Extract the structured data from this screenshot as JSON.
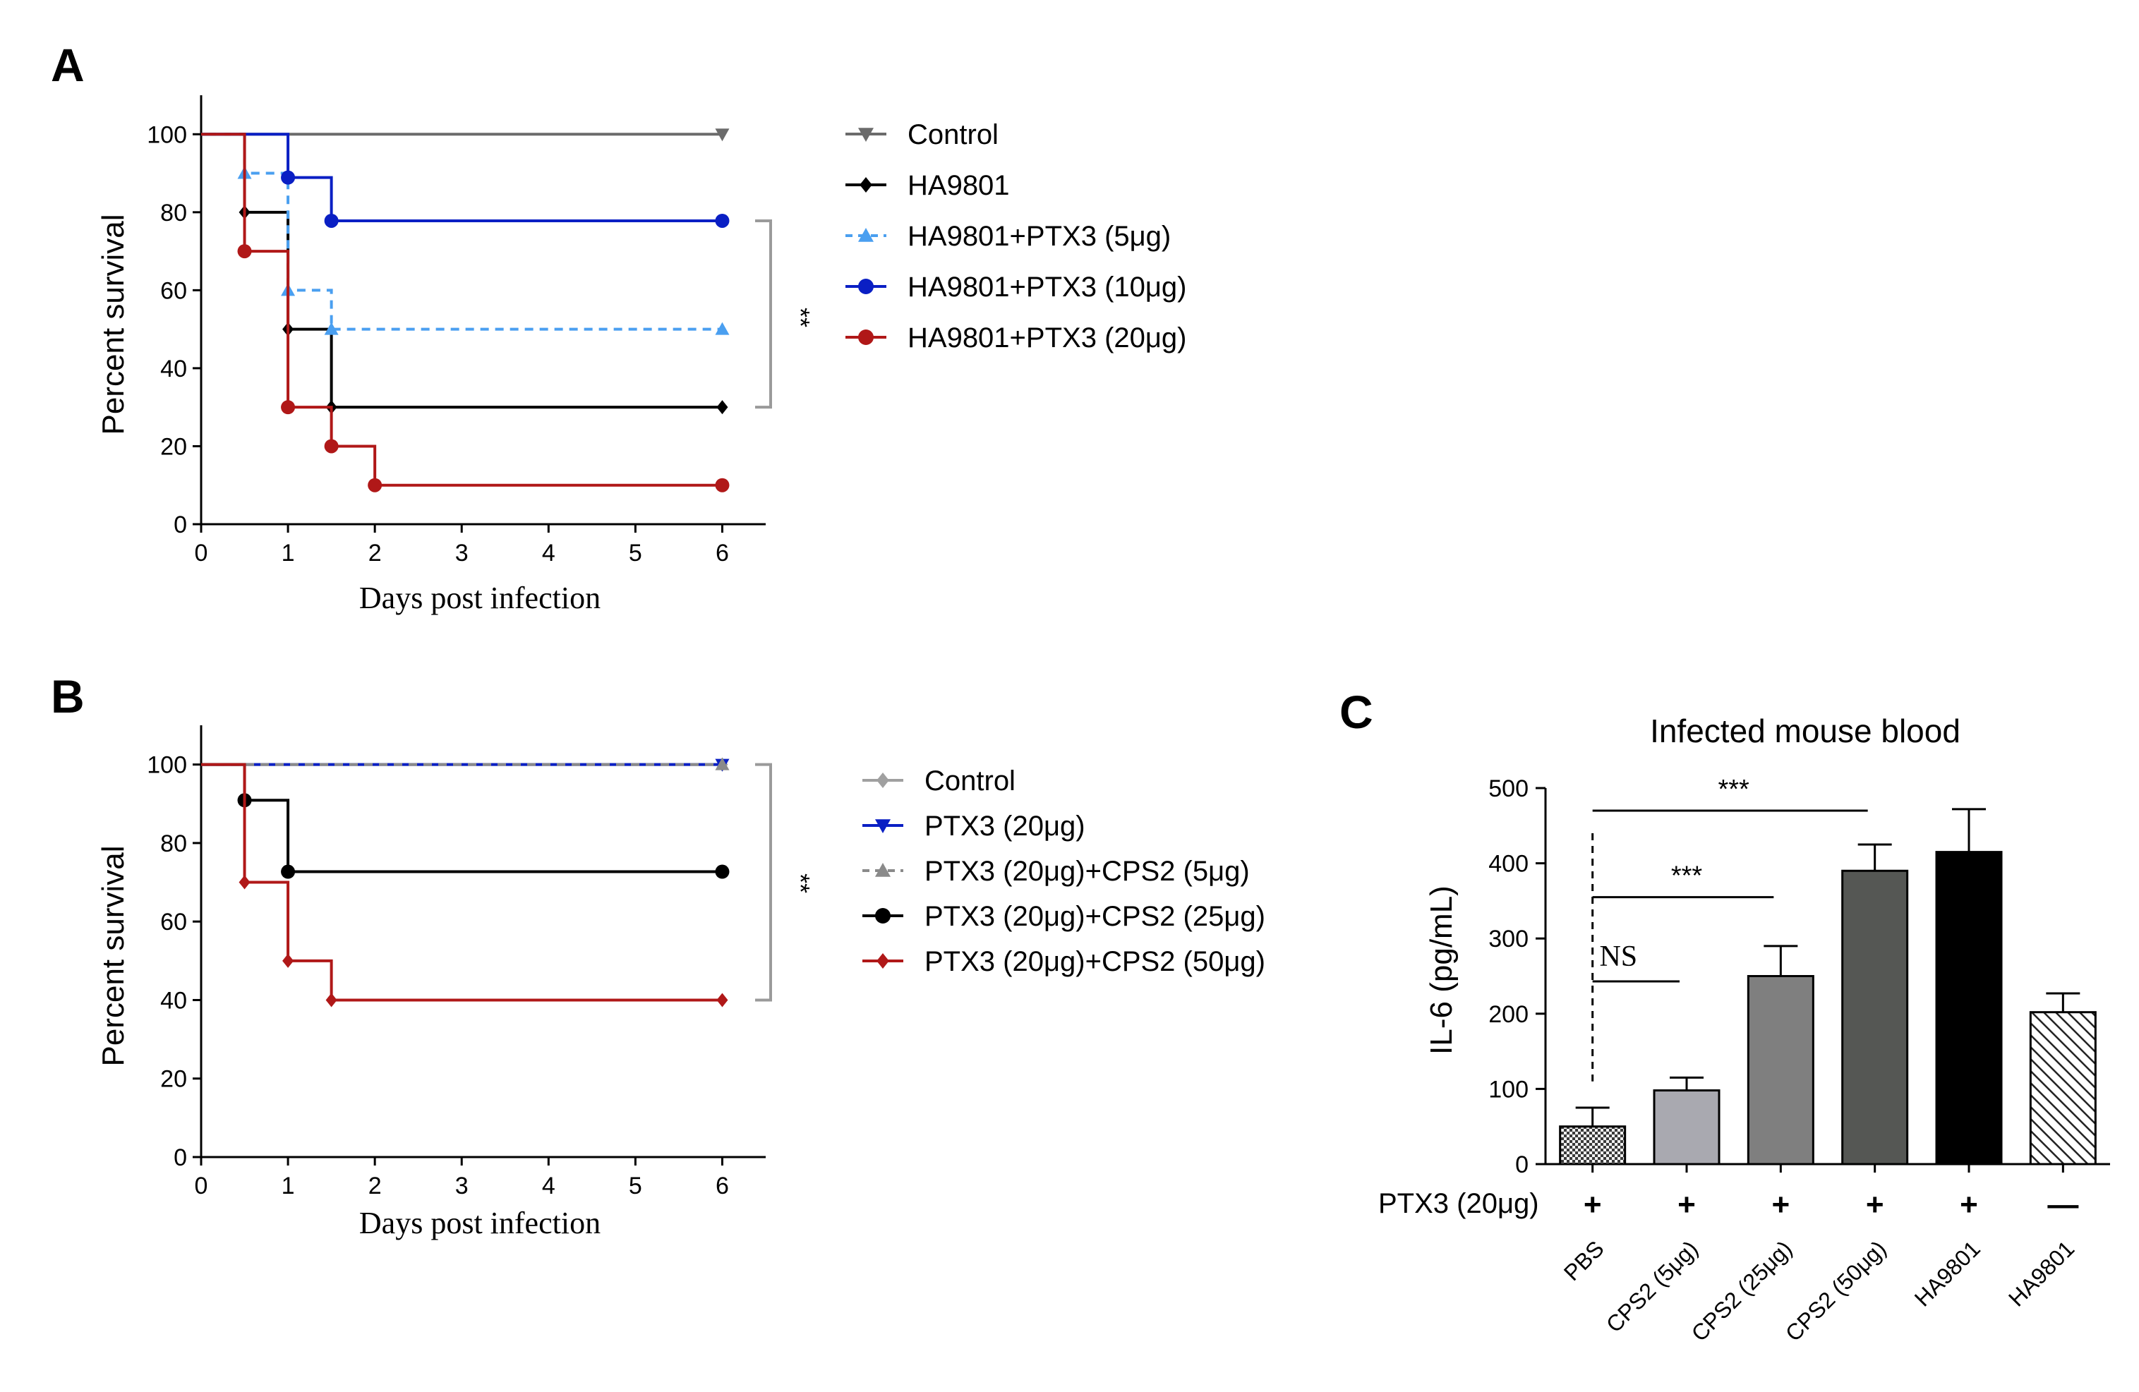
{
  "panels": {
    "A": {
      "letter": "A"
    },
    "B": {
      "letter": "B"
    },
    "C": {
      "letter": "C"
    }
  },
  "chart_data": [
    {
      "panel": "A",
      "type": "line",
      "subtype": "kaplan-meier step survival curve",
      "title": "",
      "xlabel": "Days post infection",
      "ylabel": "Percent survival",
      "xlim": [
        0,
        6.5
      ],
      "ylim": [
        0,
        110
      ],
      "xticks": [
        0,
        1,
        2,
        3,
        4,
        5,
        6
      ],
      "yticks": [
        0,
        20,
        40,
        60,
        80,
        100
      ],
      "legend_position": "right",
      "grid": false,
      "series": [
        {
          "name": "Control",
          "color": "#6b6b6b",
          "marker": "triangle-down",
          "dash": "solid",
          "points": [
            [
              0,
              100
            ],
            [
              6,
              100
            ]
          ],
          "marked": [
            [
              6,
              100
            ]
          ]
        },
        {
          "name": "HA9801",
          "color": "#000000",
          "marker": "diamond",
          "dash": "solid",
          "points": [
            [
              0,
              100
            ],
            [
              0.5,
              80
            ],
            [
              1,
              50
            ],
            [
              1.5,
              30
            ],
            [
              6,
              30
            ]
          ],
          "marked": [
            [
              0.5,
              80
            ],
            [
              1,
              50
            ],
            [
              1.5,
              30
            ],
            [
              6,
              30
            ]
          ]
        },
        {
          "name": "HA9801+PTX3 (5μg)",
          "color": "#4a9ff0",
          "marker": "triangle-up",
          "dash": "dashed",
          "points": [
            [
              0,
              100
            ],
            [
              0.5,
              90
            ],
            [
              1,
              60
            ],
            [
              1.5,
              50
            ],
            [
              6,
              50
            ]
          ],
          "marked": [
            [
              0.5,
              90
            ],
            [
              1,
              60
            ],
            [
              1.5,
              50
            ],
            [
              6,
              50
            ]
          ]
        },
        {
          "name": "HA9801+PTX3 (10μg)",
          "color": "#0a1fc4",
          "marker": "circle",
          "dash": "solid",
          "points": [
            [
              0,
              100
            ],
            [
              1,
              88.9
            ],
            [
              1.5,
              77.8
            ],
            [
              6,
              77.8
            ]
          ],
          "marked": [
            [
              1,
              88.9
            ],
            [
              1.5,
              77.8
            ],
            [
              6,
              77.8
            ]
          ]
        },
        {
          "name": "HA9801+PTX3 (20μg)",
          "color": "#b01818",
          "marker": "circle",
          "dash": "solid",
          "points": [
            [
              0,
              100
            ],
            [
              0.5,
              70
            ],
            [
              1,
              30
            ],
            [
              1.5,
              20
            ],
            [
              2,
              10
            ],
            [
              6,
              10
            ]
          ],
          "marked": [
            [
              0.5,
              70
            ],
            [
              1,
              30
            ],
            [
              1.5,
              20
            ],
            [
              2,
              10
            ],
            [
              6,
              10
            ]
          ]
        }
      ],
      "annotations": [
        {
          "text": "**",
          "bracket_from": 77.8,
          "bracket_to": 30
        }
      ]
    },
    {
      "panel": "B",
      "type": "line",
      "subtype": "kaplan-meier step survival curve",
      "title": "",
      "xlabel": "Days post infection",
      "ylabel": "Percent survival",
      "xlim": [
        0,
        6.5
      ],
      "ylim": [
        0,
        110
      ],
      "xticks": [
        0,
        1,
        2,
        3,
        4,
        5,
        6
      ],
      "yticks": [
        0,
        20,
        40,
        60,
        80,
        100
      ],
      "legend_position": "right",
      "grid": false,
      "series": [
        {
          "name": "Control",
          "color": "#a0a0a0",
          "marker": "diamond",
          "dash": "solid",
          "points": [
            [
              0,
              100
            ],
            [
              6,
              100
            ]
          ],
          "marked": [
            [
              6,
              100
            ]
          ]
        },
        {
          "name": "PTX3 (20μg)",
          "color": "#0a1fc4",
          "marker": "triangle-down",
          "dash": "solid",
          "points": [
            [
              0,
              100
            ],
            [
              6,
              100
            ]
          ],
          "marked": [
            [
              6,
              100
            ]
          ]
        },
        {
          "name": "PTX3 (20μg)+CPS2 (5μg)",
          "color": "#8a8a8a",
          "marker": "triangle-up",
          "dash": "dashed",
          "points": [
            [
              0,
              100
            ],
            [
              6,
              100
            ]
          ],
          "marked": [
            [
              6,
              100
            ]
          ]
        },
        {
          "name": "PTX3 (20μg)+CPS2 (25μg)",
          "color": "#000000",
          "marker": "circle",
          "dash": "solid",
          "points": [
            [
              0,
              100
            ],
            [
              0.5,
              90.9
            ],
            [
              1,
              72.7
            ],
            [
              6,
              72.7
            ]
          ],
          "marked": [
            [
              0.5,
              90.9
            ],
            [
              1,
              72.7
            ],
            [
              6,
              72.7
            ]
          ]
        },
        {
          "name": "PTX3 (20μg)+CPS2 (50μg)",
          "color": "#b01818",
          "marker": "diamond",
          "dash": "solid",
          "points": [
            [
              0,
              100
            ],
            [
              0.5,
              70
            ],
            [
              1,
              50
            ],
            [
              1.5,
              40
            ],
            [
              6,
              40
            ]
          ],
          "marked": [
            [
              0.5,
              70
            ],
            [
              1,
              50
            ],
            [
              1.5,
              40
            ],
            [
              6,
              40
            ]
          ]
        }
      ],
      "annotations": [
        {
          "text": "**",
          "bracket_from": 100,
          "bracket_to": 40
        }
      ]
    },
    {
      "panel": "C",
      "type": "bar",
      "title": "Infected mouse blood",
      "xlabel": "",
      "ylabel": "IL-6 (pg/mL)",
      "ylim": [
        0,
        500
      ],
      "yticks": [
        0,
        100,
        200,
        300,
        400,
        500
      ],
      "row_label": "PTX3 (20μg)",
      "grid": false,
      "categories": [
        "PBS",
        "CPS2 (5μg)",
        "CPS2 (25μg)",
        "CPS2 (50μg)",
        "HA9801",
        "HA9801"
      ],
      "values": [
        50,
        98,
        250,
        390,
        415,
        202
      ],
      "errors": [
        25,
        17,
        40,
        35,
        57,
        25
      ],
      "ptx3": [
        "+",
        "+",
        "+",
        "+",
        "+",
        "—"
      ],
      "fills": [
        "checker",
        "#a9a9b0",
        "#7f7f7f",
        "#555754",
        "#000000",
        "hatch"
      ],
      "annotations": [
        {
          "text": "NS",
          "from": 0,
          "to": 1,
          "y": 243
        },
        {
          "text": "***",
          "from": 0,
          "to": 2,
          "y": 355
        },
        {
          "text": "***",
          "from": 0,
          "to": 3,
          "y": 470
        }
      ]
    }
  ]
}
